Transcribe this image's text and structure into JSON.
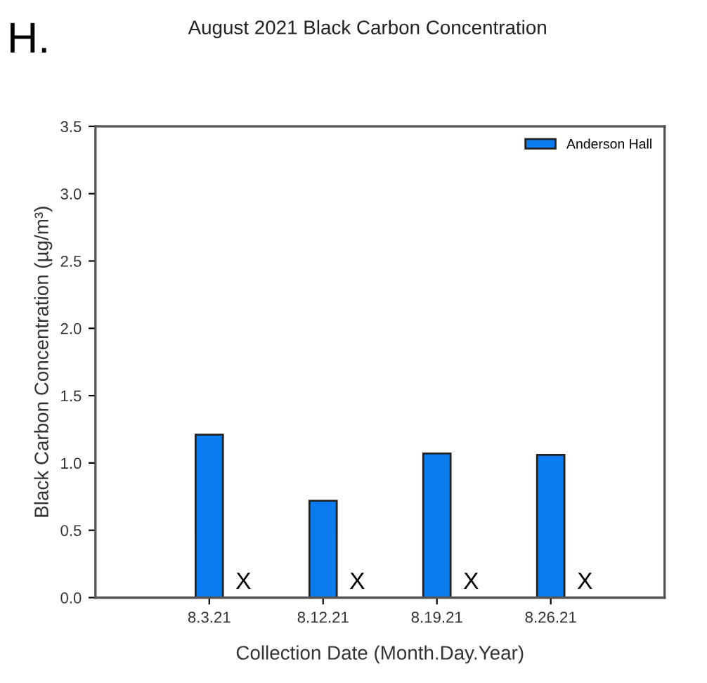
{
  "chart_data": {
    "type": "bar",
    "title": "August 2021 Black Carbon Concentration",
    "xlabel": "Collection Date (Month.Day.Year)",
    "ylabel": "Black Carbon Concentration (µg/m³)",
    "categories": [
      "8.3.21",
      "8.12.21",
      "8.19.21",
      "8.26.21"
    ],
    "series": [
      {
        "name": "Anderson Hall",
        "color": "#0a7cf0",
        "values": [
          1.21,
          0.72,
          1.07,
          1.06
        ]
      }
    ],
    "ylim": [
      0,
      3.5
    ],
    "yticks": [
      {
        "value": 0,
        "label": "0.0"
      },
      {
        "value": 0.5,
        "label": "0.5"
      },
      {
        "value": 1,
        "label": "1.0"
      },
      {
        "value": 1.5,
        "label": "1.5"
      },
      {
        "value": 2,
        "label": "2.0"
      },
      {
        "value": 2.5,
        "label": "2.5"
      },
      {
        "value": 3,
        "label": "3.0"
      },
      {
        "value": 3.5,
        "label": "3.5"
      }
    ],
    "legend": "top right",
    "grid": false,
    "annotations": [
      "H.",
      {
        "text": "X",
        "x": "8.3.21",
        "y": 0
      },
      {
        "text": "X",
        "x": "8.12.21",
        "y": 0
      },
      {
        "text": "X",
        "x": "8.19.21",
        "y": 0
      },
      {
        "text": "X",
        "x": "8.26.21",
        "y": 0
      }
    ]
  }
}
